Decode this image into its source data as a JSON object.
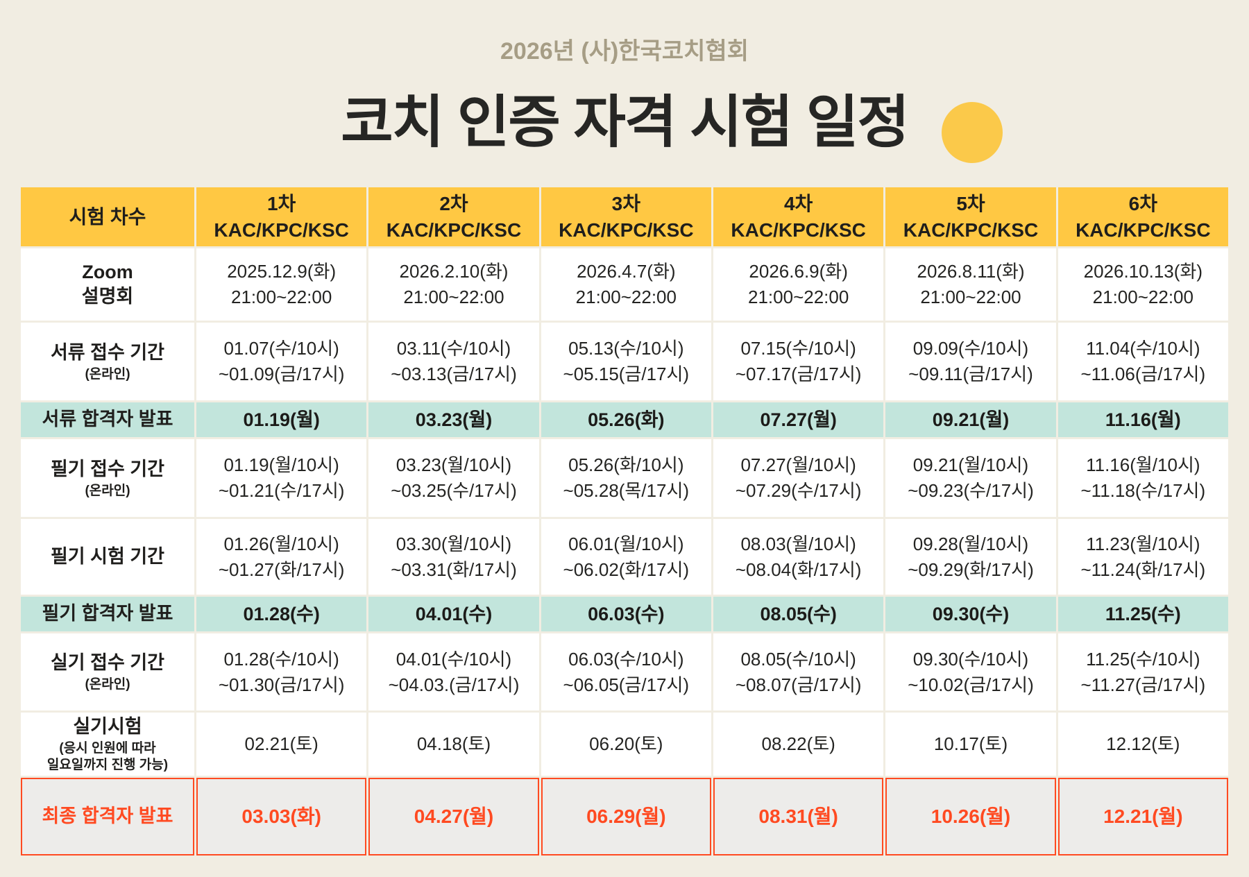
{
  "page": {
    "subtitle": "2026년 (사)한국코치협회",
    "title": "코치 인증 자격 시험 일정",
    "colors": {
      "background": "#F1EDE2",
      "header_yellow": "#FFC843",
      "mint_highlight": "#C2E5DC",
      "final_row_background": "#EDECEA",
      "final_row_red": "#FF4A21",
      "subtitle_color": "#A69D85",
      "accent_circle": "#FBC94A",
      "text_dark": "#1F1E1C"
    }
  },
  "table": {
    "corner_label": "시험 차수",
    "columns": [
      {
        "round": "1차",
        "cert": "KAC/KPC/KSC"
      },
      {
        "round": "2차",
        "cert": "KAC/KPC/KSC"
      },
      {
        "round": "3차",
        "cert": "KAC/KPC/KSC"
      },
      {
        "round": "4차",
        "cert": "KAC/KPC/KSC"
      },
      {
        "round": "5차",
        "cert": "KAC/KPC/KSC"
      },
      {
        "round": "6차",
        "cert": "KAC/KPC/KSC"
      }
    ],
    "rows": [
      {
        "label": "Zoom\n설명회",
        "sub": "",
        "type": "normal",
        "cells": [
          "2025.12.9(화)\n21:00~22:00",
          "2026.2.10(화)\n21:00~22:00",
          "2026.4.7(화)\n21:00~22:00",
          "2026.6.9(화)\n21:00~22:00",
          "2026.8.11(화)\n21:00~22:00",
          "2026.10.13(화)\n21:00~22:00"
        ]
      },
      {
        "label": "서류 접수 기간",
        "sub": "(온라인)",
        "type": "normal",
        "cells": [
          "01.07(수/10시)\n~01.09(금/17시)",
          "03.11(수/10시)\n~03.13(금/17시)",
          "05.13(수/10시)\n~05.15(금/17시)",
          "07.15(수/10시)\n~07.17(금/17시)",
          "09.09(수/10시)\n~09.11(금/17시)",
          "11.04(수/10시)\n~11.06(금/17시)"
        ]
      },
      {
        "label": "서류 합격자 발표",
        "sub": "",
        "type": "highlight",
        "cells": [
          "01.19(월)",
          "03.23(월)",
          "05.26(화)",
          "07.27(월)",
          "09.21(월)",
          "11.16(월)"
        ]
      },
      {
        "label": "필기 접수 기간",
        "sub": "(온라인)",
        "type": "normal",
        "cells": [
          "01.19(월/10시)\n~01.21(수/17시)",
          "03.23(월/10시)\n~03.25(수/17시)",
          "05.26(화/10시)\n~05.28(목/17시)",
          "07.27(월/10시)\n~07.29(수/17시)",
          "09.21(월/10시)\n~09.23(수/17시)",
          "11.16(월/10시)\n~11.18(수/17시)"
        ]
      },
      {
        "label": "필기 시험 기간",
        "sub": "",
        "type": "normal",
        "cells": [
          "01.26(월/10시)\n~01.27(화/17시)",
          "03.30(월/10시)\n~03.31(화/17시)",
          "06.01(월/10시)\n~06.02(화/17시)",
          "08.03(월/10시)\n~08.04(화/17시)",
          "09.28(월/10시)\n~09.29(화/17시)",
          "11.23(월/10시)\n~11.24(화/17시)"
        ]
      },
      {
        "label": "필기 합격자 발표",
        "sub": "",
        "type": "highlight",
        "cells": [
          "01.28(수)",
          "04.01(수)",
          "06.03(수)",
          "08.05(수)",
          "09.30(수)",
          "11.25(수)"
        ]
      },
      {
        "label": "실기 접수 기간",
        "sub": "(온라인)",
        "type": "normal",
        "cells": [
          "01.28(수/10시)\n~01.30(금/17시)",
          "04.01(수/10시)\n~04.03.(금/17시)",
          "06.03(수/10시)\n~06.05(금/17시)",
          "08.05(수/10시)\n~08.07(금/17시)",
          "09.30(수/10시)\n~10.02(금/17시)",
          "11.25(수/10시)\n~11.27(금/17시)"
        ]
      },
      {
        "label": "실기시험",
        "sub": "(응시 인원에 따라\n일요일까지 진행 가능)",
        "type": "normal",
        "cells": [
          "02.21(토)",
          "04.18(토)",
          "06.20(토)",
          "08.22(토)",
          "10.17(토)",
          "12.12(토)"
        ]
      },
      {
        "label": "최종 합격자 발표",
        "sub": "",
        "type": "final",
        "cells": [
          "03.03(화)",
          "04.27(월)",
          "06.29(월)",
          "08.31(월)",
          "10.26(월)",
          "12.21(월)"
        ]
      }
    ]
  }
}
